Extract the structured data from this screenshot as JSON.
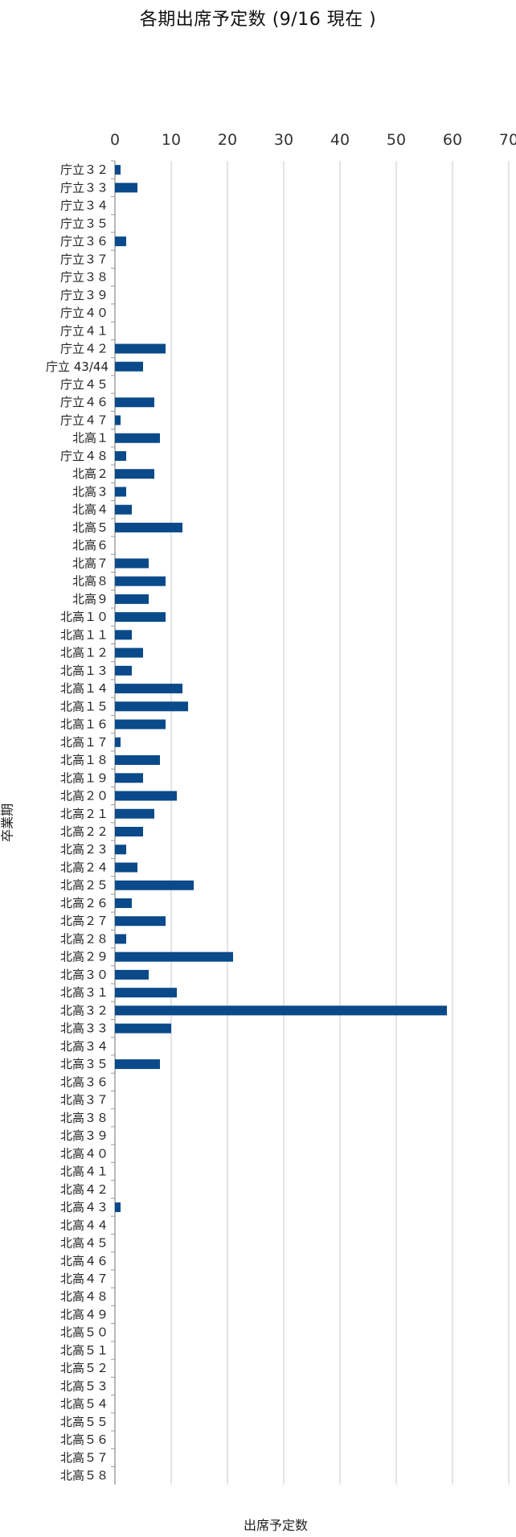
{
  "chart_data": {
    "type": "bar",
    "orientation": "horizontal",
    "title": "各期出席予定数 (9/16 現在 )",
    "xlabel": "出席予定数",
    "ylabel": "卒業期",
    "xlim": [
      0,
      70
    ],
    "x_ticks": [
      0,
      10,
      20,
      30,
      40,
      50,
      60,
      70
    ],
    "grid": true,
    "bar_color": "#0a4a8a",
    "categories": [
      "庁立３２",
      "庁立３３",
      "庁立３４",
      "庁立３５",
      "庁立３６",
      "庁立３７",
      "庁立３８",
      "庁立３９",
      "庁立４０",
      "庁立４１",
      "庁立４２",
      "庁立 43/44",
      "庁立４５",
      "庁立４６",
      "庁立４７",
      "北高１",
      "庁立４８",
      "北高２",
      "北高３",
      "北高４",
      "北高５",
      "北高６",
      "北高７",
      "北高８",
      "北高９",
      "北高１０",
      "北高１１",
      "北高１２",
      "北高１３",
      "北高１４",
      "北高１５",
      "北高１６",
      "北高１７",
      "北高１８",
      "北高１９",
      "北高２０",
      "北高２１",
      "北高２２",
      "北高２３",
      "北高２４",
      "北高２５",
      "北高２６",
      "北高２７",
      "北高２８",
      "北高２９",
      "北高３０",
      "北高３１",
      "北高３２",
      "北高３３",
      "北高３４",
      "北高３５",
      "北高３６",
      "北高３７",
      "北高３８",
      "北高３９",
      "北高４０",
      "北高４１",
      "北高４２",
      "北高４３",
      "北高４４",
      "北高４５",
      "北高４６",
      "北高４７",
      "北高４８",
      "北高４９",
      "北高５０",
      "北高５１",
      "北高５２",
      "北高５３",
      "北高５４",
      "北高５５",
      "北高５６",
      "北高５７",
      "北高５８"
    ],
    "values": [
      1,
      4,
      0,
      0,
      2,
      0,
      0,
      0,
      0,
      0,
      9,
      5,
      0,
      7,
      1,
      8,
      2,
      7,
      2,
      3,
      12,
      0,
      6,
      9,
      6,
      9,
      3,
      5,
      3,
      12,
      13,
      9,
      1,
      8,
      5,
      11,
      7,
      5,
      2,
      4,
      14,
      3,
      9,
      2,
      21,
      6,
      11,
      59,
      10,
      0,
      8,
      0,
      0,
      0,
      0,
      0,
      0,
      0,
      1,
      0,
      0,
      0,
      0,
      0,
      0,
      0,
      0,
      0,
      0,
      0,
      0,
      0,
      0,
      0
    ]
  }
}
